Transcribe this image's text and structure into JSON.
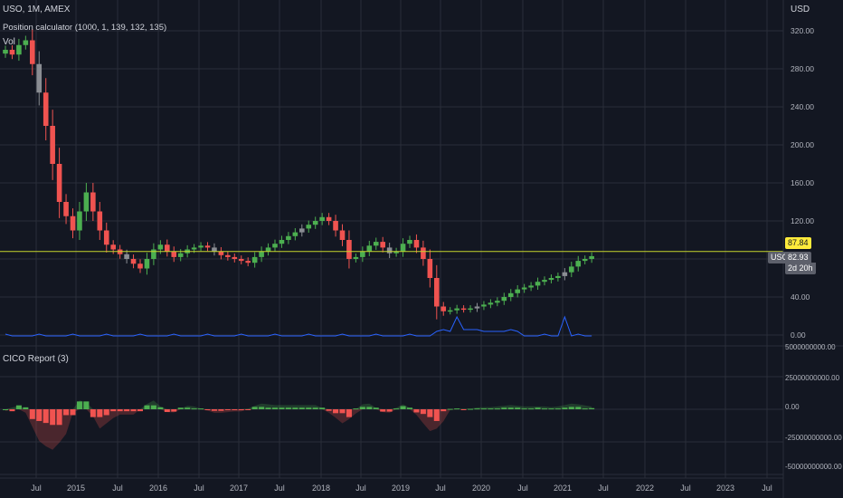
{
  "chart_header": {
    "symbol_line": "USO, 1M, AMEX",
    "indicator_1": "Position calculator (1000, 1, 139, 132, 135)",
    "indicator_2": "Vol",
    "indicator_3": "CICO Report (3)",
    "currency": "USD"
  },
  "price_scale_labels": [
    "320.00",
    "280.00",
    "240.00",
    "200.00",
    "160.00",
    "120.00",
    "40.00",
    "0.00"
  ],
  "cico_scale_labels": [
    "5000000000.00",
    "25000000000.00",
    "0.00",
    "-25000000000.00",
    "-50000000000.00"
  ],
  "time_axis_labels": [
    "Jul",
    "2015",
    "Jul",
    "2016",
    "Jul",
    "2017",
    "Jul",
    "2018",
    "Jul",
    "2019",
    "Jul",
    "2020",
    "Jul",
    "2021",
    "Jul",
    "2022",
    "Jul",
    "2023",
    "Jul"
  ],
  "tags": {
    "line_price": "87.84",
    "symbol": "USO",
    "last_price": "82.93",
    "countdown": "2d 20h"
  },
  "colors": {
    "background": "#131722",
    "grid": "#2a2e39",
    "up": "#4caf50",
    "down": "#f05350",
    "neutral": "#8a8d93",
    "hline": "#c6d62d",
    "volume_line": "#2962ff",
    "tag_yellow": "#ffeb3b"
  },
  "chart_data": [
    {
      "type": "candlestick",
      "title": "USO, 1M, AMEX",
      "y_axis_unit": "USD",
      "ylim": [
        -20,
        340
      ],
      "horizontal_line": 87.84,
      "last_price": 82.93,
      "x_start": "2014-03",
      "close_series_approx": [
        300,
        295,
        305,
        310,
        285,
        255,
        220,
        180,
        140,
        125,
        110,
        130,
        150,
        130,
        110,
        95,
        90,
        85,
        80,
        75,
        70,
        80,
        90,
        95,
        88,
        82,
        86,
        90,
        92,
        94,
        92,
        88,
        84,
        82,
        80,
        78,
        76,
        82,
        88,
        92,
        96,
        100,
        104,
        108,
        112,
        116,
        120,
        124,
        120,
        110,
        100,
        80,
        82,
        88,
        94,
        98,
        92,
        86,
        88,
        96,
        100,
        92,
        80,
        60,
        30,
        25,
        26,
        28,
        27,
        28,
        30,
        32,
        34,
        36,
        40,
        44,
        48,
        50,
        52,
        56,
        58,
        60,
        62,
        66,
        72,
        78,
        80,
        82.93
      ]
    },
    {
      "type": "bar",
      "title": "CICO Report (3)",
      "ylim": [
        -50000000000,
        50000000000
      ],
      "note": "monthly histogram with shaded 3-period envelope"
    }
  ]
}
